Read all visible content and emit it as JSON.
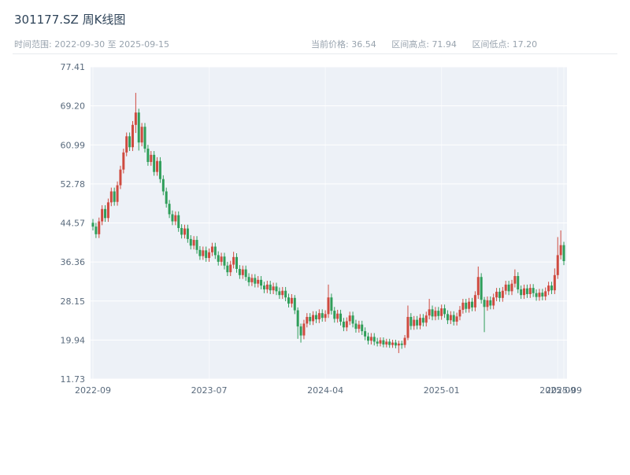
{
  "header": {
    "title": "301177.SZ 周K线图",
    "time_range_text": "时间范围: 2022-09-30 至 2025-09-15",
    "stats": [
      {
        "label": "当前价格:",
        "value": "36.54"
      },
      {
        "label": "区间高点:",
        "value": "71.94"
      },
      {
        "label": "区间低点:",
        "value": "17.20"
      }
    ]
  },
  "chart_data": {
    "type": "candlestick",
    "title": "301177.SZ 周K线图",
    "period": "weekly",
    "date_start": "2022-09-30",
    "date_end": "2025-09-15",
    "current_price": 36.54,
    "range_high": 71.94,
    "range_low": 17.2,
    "ylim": [
      11.73,
      77.41
    ],
    "y_ticks": [
      77.41,
      69.2,
      60.99,
      52.78,
      44.57,
      36.36,
      28.15,
      19.94,
      11.73
    ],
    "x_tick_labels": [
      {
        "i": 0,
        "label": "2022-09"
      },
      {
        "i": 38,
        "label": "2023-07"
      },
      {
        "i": 76,
        "label": "2024-04"
      },
      {
        "i": 114,
        "label": "2025-01"
      },
      {
        "i": 152,
        "label": "2025-09"
      },
      {
        "i": 154,
        "label": "2025-09"
      }
    ],
    "grid": true,
    "legend": "none",
    "colors": {
      "up": "#cf4a3f",
      "down": "#2f9e5a",
      "plot_bg": "#edf1f7",
      "grid_line": "#ffffff",
      "axis_text": "#5a6b7d"
    },
    "candles_ohlc": [
      [
        44.6,
        45.4,
        43.0,
        43.8
      ],
      [
        43.8,
        44.6,
        41.4,
        42.2
      ],
      [
        42.2,
        45.7,
        41.4,
        44.9
      ],
      [
        44.9,
        48.3,
        44.1,
        47.5
      ],
      [
        47.5,
        48.3,
        44.8,
        45.6
      ],
      [
        45.6,
        49.7,
        44.8,
        48.9
      ],
      [
        48.9,
        52.0,
        48.1,
        51.2
      ],
      [
        51.2,
        52.0,
        48.2,
        49.0
      ],
      [
        49.0,
        53.3,
        48.2,
        52.5
      ],
      [
        52.5,
        56.6,
        51.7,
        55.8
      ],
      [
        55.8,
        60.2,
        55.0,
        59.4
      ],
      [
        59.4,
        63.6,
        58.6,
        62.8
      ],
      [
        62.8,
        63.6,
        59.7,
        60.5
      ],
      [
        60.5,
        66.0,
        59.7,
        65.2
      ],
      [
        65.2,
        71.94,
        63.5,
        67.8
      ],
      [
        67.8,
        68.6,
        59.8,
        61.5
      ],
      [
        61.5,
        65.6,
        60.7,
        64.8
      ],
      [
        64.8,
        65.6,
        59.4,
        60.2
      ],
      [
        60.2,
        61.0,
        56.6,
        57.4
      ],
      [
        57.4,
        59.7,
        56.6,
        58.9
      ],
      [
        58.9,
        59.7,
        54.5,
        55.3
      ],
      [
        55.3,
        58.4,
        54.5,
        57.6
      ],
      [
        57.6,
        58.4,
        53.0,
        53.8
      ],
      [
        53.8,
        54.6,
        50.4,
        51.2
      ],
      [
        51.2,
        52.0,
        47.8,
        48.6
      ],
      [
        48.6,
        49.4,
        45.6,
        46.4
      ],
      [
        46.4,
        47.2,
        44.1,
        44.9
      ],
      [
        44.9,
        47.0,
        44.1,
        46.2
      ],
      [
        46.2,
        47.0,
        42.7,
        43.5
      ],
      [
        43.5,
        44.3,
        41.3,
        42.1
      ],
      [
        42.1,
        44.2,
        41.3,
        43.4
      ],
      [
        43.4,
        44.2,
        40.4,
        41.2
      ],
      [
        41.2,
        42.0,
        39.0,
        39.8
      ],
      [
        39.8,
        41.8,
        39.0,
        41.0
      ],
      [
        41.0,
        41.8,
        38.1,
        38.9
      ],
      [
        38.9,
        39.7,
        36.8,
        37.6
      ],
      [
        37.6,
        39.6,
        36.8,
        38.8
      ],
      [
        38.8,
        39.6,
        36.4,
        37.2
      ],
      [
        37.2,
        39.2,
        36.4,
        38.4
      ],
      [
        38.4,
        40.4,
        37.6,
        39.6
      ],
      [
        39.6,
        40.4,
        37.0,
        37.8
      ],
      [
        37.8,
        38.6,
        35.6,
        36.4
      ],
      [
        36.4,
        38.3,
        35.6,
        37.5
      ],
      [
        37.5,
        38.3,
        34.8,
        35.6
      ],
      [
        35.6,
        36.4,
        33.4,
        34.2
      ],
      [
        34.2,
        36.6,
        33.4,
        35.8
      ],
      [
        35.8,
        38.5,
        35.0,
        37.4
      ],
      [
        37.4,
        38.2,
        34.1,
        34.9
      ],
      [
        34.9,
        35.7,
        32.8,
        33.6
      ],
      [
        33.6,
        35.6,
        32.8,
        34.8
      ],
      [
        34.8,
        35.6,
        32.4,
        33.2
      ],
      [
        33.2,
        34.0,
        31.3,
        32.1
      ],
      [
        32.1,
        33.8,
        31.3,
        33.0
      ],
      [
        33.0,
        33.8,
        31.0,
        31.8
      ],
      [
        31.8,
        33.4,
        31.0,
        32.6
      ],
      [
        32.6,
        33.4,
        30.6,
        31.4
      ],
      [
        31.4,
        32.2,
        29.8,
        30.6
      ],
      [
        30.6,
        32.4,
        29.8,
        31.6
      ],
      [
        31.6,
        32.4,
        29.6,
        30.4
      ],
      [
        30.4,
        32.0,
        29.6,
        31.2
      ],
      [
        31.2,
        32.0,
        29.4,
        30.2
      ],
      [
        30.2,
        31.0,
        28.6,
        29.4
      ],
      [
        29.4,
        31.1,
        28.6,
        30.3
      ],
      [
        30.3,
        31.1,
        28.1,
        28.9
      ],
      [
        28.9,
        29.7,
        26.8,
        27.6
      ],
      [
        27.6,
        29.6,
        26.8,
        28.8
      ],
      [
        28.8,
        29.4,
        25.4,
        26.2
      ],
      [
        26.2,
        26.8,
        20.2,
        22.8
      ],
      [
        22.8,
        23.4,
        19.4,
        20.9
      ],
      [
        20.9,
        24.2,
        20.1,
        23.4
      ],
      [
        23.4,
        25.6,
        22.6,
        24.8
      ],
      [
        24.8,
        25.6,
        23.1,
        23.9
      ],
      [
        23.9,
        26.0,
        23.1,
        25.2
      ],
      [
        25.2,
        26.0,
        23.5,
        24.3
      ],
      [
        24.3,
        26.4,
        23.5,
        25.6
      ],
      [
        25.6,
        26.4,
        23.8,
        24.6
      ],
      [
        24.6,
        26.2,
        23.8,
        25.4
      ],
      [
        25.4,
        31.6,
        24.6,
        28.9
      ],
      [
        28.9,
        29.7,
        25.3,
        26.1
      ],
      [
        26.1,
        26.9,
        23.6,
        24.4
      ],
      [
        24.4,
        26.3,
        23.6,
        25.5
      ],
      [
        25.5,
        26.3,
        23.0,
        23.8
      ],
      [
        23.8,
        24.6,
        21.8,
        22.6
      ],
      [
        22.6,
        24.7,
        21.8,
        23.9
      ],
      [
        23.9,
        25.9,
        23.1,
        25.1
      ],
      [
        25.1,
        25.9,
        22.6,
        23.4
      ],
      [
        23.4,
        24.2,
        21.5,
        22.3
      ],
      [
        22.3,
        24.0,
        21.5,
        23.2
      ],
      [
        23.2,
        24.0,
        21.0,
        21.8
      ],
      [
        21.8,
        22.6,
        19.9,
        20.7
      ],
      [
        20.7,
        21.5,
        19.0,
        19.8
      ],
      [
        19.8,
        21.4,
        19.0,
        20.6
      ],
      [
        20.6,
        21.4,
        18.8,
        19.6
      ],
      [
        19.6,
        20.4,
        18.6,
        19.2
      ],
      [
        19.2,
        20.5,
        18.6,
        19.9
      ],
      [
        19.9,
        20.5,
        18.4,
        19.0
      ],
      [
        19.0,
        20.2,
        18.4,
        19.6
      ],
      [
        19.6,
        20.2,
        18.3,
        18.9
      ],
      [
        18.9,
        20.0,
        18.3,
        19.4
      ],
      [
        19.4,
        20.0,
        18.2,
        18.8
      ],
      [
        18.8,
        19.8,
        17.2,
        19.2
      ],
      [
        19.2,
        19.8,
        18.1,
        18.9
      ],
      [
        18.9,
        21.0,
        18.3,
        20.4
      ],
      [
        20.4,
        27.2,
        19.9,
        24.8
      ],
      [
        24.8,
        25.6,
        22.1,
        22.9
      ],
      [
        22.9,
        25.0,
        22.1,
        24.2
      ],
      [
        24.2,
        25.0,
        22.2,
        23.0
      ],
      [
        23.0,
        25.4,
        22.2,
        24.6
      ],
      [
        24.6,
        25.4,
        22.8,
        23.6
      ],
      [
        23.6,
        25.9,
        22.8,
        25.1
      ],
      [
        25.1,
        28.6,
        24.3,
        26.4
      ],
      [
        26.4,
        27.2,
        24.1,
        24.9
      ],
      [
        24.9,
        26.9,
        24.1,
        26.1
      ],
      [
        26.1,
        26.9,
        24.2,
        25.0
      ],
      [
        25.0,
        27.4,
        24.2,
        26.6
      ],
      [
        26.6,
        27.4,
        24.6,
        25.4
      ],
      [
        25.4,
        26.2,
        23.3,
        24.1
      ],
      [
        24.1,
        26.0,
        23.3,
        25.2
      ],
      [
        25.2,
        26.0,
        23.0,
        23.8
      ],
      [
        23.8,
        25.7,
        23.0,
        24.9
      ],
      [
        24.9,
        27.1,
        24.1,
        26.3
      ],
      [
        26.3,
        28.6,
        25.5,
        27.8
      ],
      [
        27.8,
        28.6,
        25.7,
        26.5
      ],
      [
        26.5,
        28.8,
        25.7,
        28.0
      ],
      [
        28.0,
        28.8,
        26.0,
        26.8
      ],
      [
        26.8,
        30.2,
        26.0,
        29.4
      ],
      [
        29.4,
        35.4,
        28.6,
        33.2
      ],
      [
        33.2,
        34.0,
        27.6,
        28.4
      ],
      [
        28.4,
        29.0,
        21.6,
        26.9
      ],
      [
        26.9,
        29.1,
        26.1,
        28.3
      ],
      [
        28.3,
        29.1,
        26.4,
        27.2
      ],
      [
        27.2,
        29.7,
        26.4,
        28.9
      ],
      [
        28.9,
        30.9,
        28.1,
        30.1
      ],
      [
        30.1,
        30.9,
        28.0,
        28.8
      ],
      [
        28.8,
        31.1,
        28.0,
        30.3
      ],
      [
        30.3,
        32.4,
        29.5,
        31.6
      ],
      [
        31.6,
        32.4,
        29.4,
        30.2
      ],
      [
        30.2,
        32.6,
        29.4,
        31.8
      ],
      [
        31.8,
        34.8,
        31.0,
        33.4
      ],
      [
        33.4,
        34.2,
        29.8,
        30.6
      ],
      [
        30.6,
        31.4,
        28.6,
        29.4
      ],
      [
        29.4,
        31.6,
        28.6,
        30.8
      ],
      [
        30.8,
        31.6,
        28.8,
        29.6
      ],
      [
        29.6,
        31.7,
        28.8,
        30.9
      ],
      [
        30.9,
        31.7,
        29.0,
        29.8
      ],
      [
        29.8,
        30.6,
        28.2,
        29.0
      ],
      [
        29.0,
        30.7,
        28.2,
        29.9
      ],
      [
        29.9,
        30.7,
        28.3,
        29.1
      ],
      [
        29.1,
        31.0,
        28.3,
        30.2
      ],
      [
        30.2,
        32.2,
        29.4,
        31.4
      ],
      [
        31.4,
        32.2,
        29.6,
        30.4
      ],
      [
        30.4,
        35.0,
        29.6,
        33.6
      ],
      [
        33.6,
        41.6,
        32.8,
        37.8
      ],
      [
        37.8,
        43.0,
        36.9,
        39.9
      ],
      [
        39.9,
        40.6,
        35.7,
        36.54
      ]
    ]
  }
}
